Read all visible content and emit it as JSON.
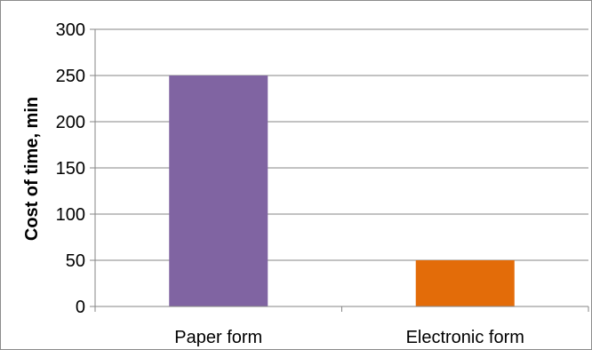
{
  "chart_data": {
    "type": "bar",
    "title": "",
    "xlabel": "",
    "ylabel": "Cost of time, min",
    "categories": [
      "Paper form",
      "Electronic form"
    ],
    "values": [
      250,
      50
    ],
    "colors": [
      "#8064a2",
      "#e36c09"
    ],
    "ylim": [
      0,
      300
    ],
    "yticks": [
      0,
      50,
      100,
      150,
      200,
      250,
      300
    ],
    "grid": true,
    "legend": "none"
  }
}
